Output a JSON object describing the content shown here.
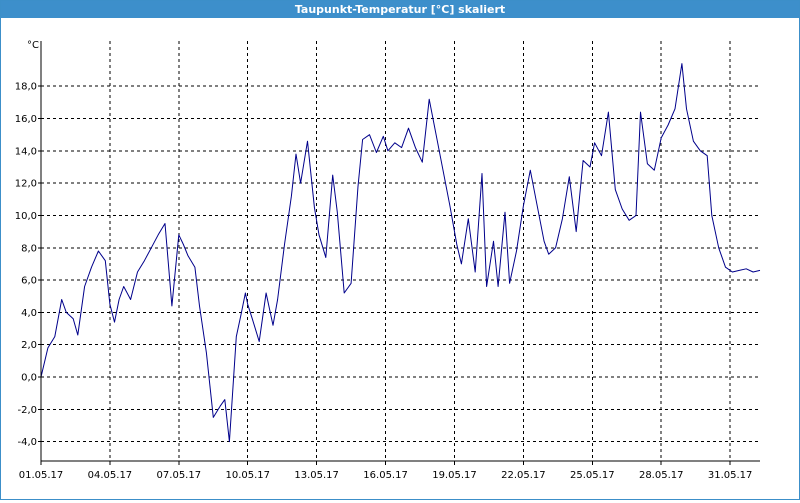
{
  "window": {
    "title": "Taupunkt-Temperatur [°C] skaliert"
  },
  "colors": {
    "titlebar": "#3d8fcb",
    "line": "#00008b",
    "grid": "#000000"
  },
  "chart_data": {
    "type": "line",
    "title": "Taupunkt-Temperatur [°C] skaliert",
    "ylabel": "°C",
    "xlabel": "",
    "ylim": [
      -5.2,
      20.8
    ],
    "xlim": [
      0,
      31.3
    ],
    "yticks": [
      18.0,
      16.0,
      14.0,
      12.0,
      10.0,
      8.0,
      6.0,
      4.0,
      2.0,
      0.0,
      -2.0,
      -4.0
    ],
    "ytick_labels": [
      "18,0",
      "16,0",
      "14,0",
      "12,0",
      "10,0",
      "8,0",
      "6,0",
      "4,0",
      "2,0",
      "0,0",
      "-2,0",
      "-4,0"
    ],
    "xticks": [
      0,
      3,
      6,
      9,
      12,
      15,
      18,
      21,
      24,
      27,
      30
    ],
    "xtick_labels": [
      "01.05.17",
      "04.05.17",
      "07.05.17",
      "10.05.17",
      "13.05.17",
      "16.05.17",
      "19.05.17",
      "22.05.17",
      "25.05.17",
      "28.05.17",
      "31.05.17"
    ],
    "grid": true,
    "x_unit": "days since 01.05.17",
    "x": [
      0,
      0.3,
      0.6,
      0.9,
      1.1,
      1.4,
      1.6,
      1.9,
      2.2,
      2.5,
      2.8,
      3.0,
      3.2,
      3.4,
      3.6,
      3.9,
      4.2,
      4.5,
      4.8,
      5.1,
      5.4,
      5.7,
      6.0,
      6.2,
      6.4,
      6.7,
      6.9,
      7.2,
      7.5,
      7.8,
      8.0,
      8.2,
      8.5,
      8.7,
      8.9,
      9.0,
      9.2,
      9.5,
      9.8,
      10.1,
      10.3,
      10.6,
      10.9,
      11.1,
      11.3,
      11.6,
      11.9,
      12.1,
      12.4,
      12.7,
      12.9,
      13.2,
      13.5,
      13.8,
      14.0,
      14.3,
      14.6,
      14.9,
      15.1,
      15.4,
      15.7,
      16.0,
      16.3,
      16.6,
      16.9,
      17.2,
      17.5,
      17.8,
      18.1,
      18.3,
      18.6,
      18.9,
      19.2,
      19.4,
      19.7,
      19.9,
      20.2,
      20.4,
      20.7,
      21.0,
      21.3,
      21.6,
      21.9,
      22.1,
      22.4,
      22.7,
      23.0,
      23.3,
      23.6,
      23.9,
      24.1,
      24.4,
      24.7,
      25.0,
      25.3,
      25.6,
      25.9,
      26.1,
      26.4,
      26.7,
      27.0,
      27.3,
      27.6,
      27.9,
      28.1,
      28.4,
      28.7,
      29.0,
      29.2,
      29.5,
      29.8,
      30.1,
      30.4,
      30.7,
      31.0,
      31.3
    ],
    "series": [
      {
        "values": [
          0.0,
          1.8,
          2.5,
          4.8,
          4.0,
          3.6,
          2.6,
          5.6,
          6.8,
          7.8,
          7.2,
          4.5,
          3.4,
          4.8,
          5.6,
          4.8,
          6.5,
          7.2,
          8.0,
          8.8,
          9.5,
          4.4,
          8.8,
          8.2,
          7.5,
          6.8,
          4.4,
          1.5,
          -2.5,
          -1.8,
          -1.4,
          -4.0,
          2.5,
          3.8,
          5.2,
          4.5,
          3.6,
          2.2,
          5.2,
          3.2,
          4.8,
          8.2,
          11.2,
          13.8,
          12.0,
          14.6,
          10.5,
          8.8,
          7.4,
          12.5,
          10.2,
          5.2,
          5.8,
          11.8,
          14.7,
          15.0,
          13.9,
          14.9,
          14.0,
          14.5,
          14.2,
          15.4,
          14.2,
          13.3,
          17.2,
          15.0,
          12.8,
          10.6,
          8.2,
          7.0,
          9.8,
          6.5,
          12.6,
          5.6,
          8.4,
          5.6,
          10.2,
          5.8,
          7.8,
          10.6,
          12.8,
          10.6,
          8.4,
          7.6,
          8.0,
          9.8,
          12.4,
          9.0,
          13.4,
          13.0,
          14.5,
          13.7,
          16.4,
          11.6,
          10.4,
          9.7,
          10.0,
          16.4,
          13.2,
          12.8,
          14.8,
          15.6,
          16.6,
          19.4,
          16.6,
          14.6,
          14.0,
          13.7,
          10.0,
          8.0,
          6.8,
          6.5,
          6.6,
          6.7,
          6.5,
          6.6
        ]
      }
    ]
  }
}
